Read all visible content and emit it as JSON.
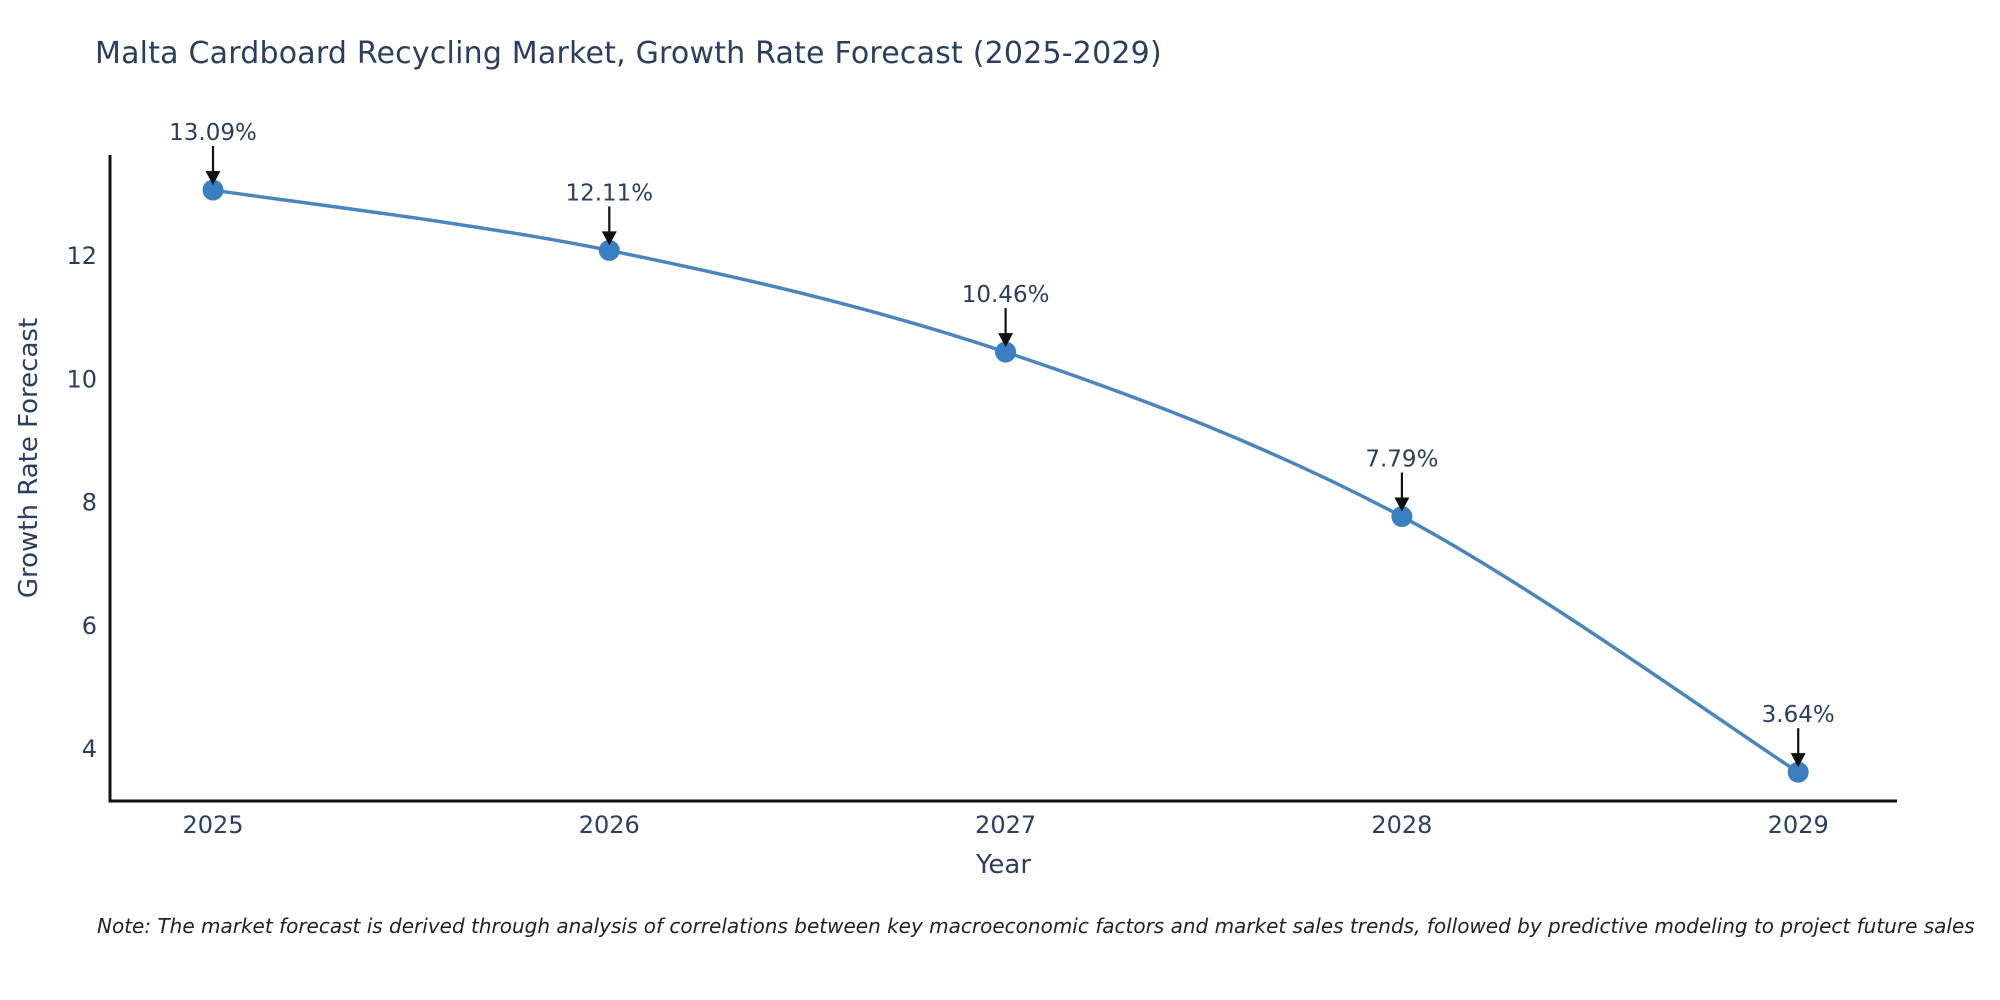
{
  "header": {
    "title": "Malta Cardboard Recycling Market, Growth Rate Forecast (2025-2029)"
  },
  "footnote": "Note: The market forecast is derived through analysis of correlations between key macroeconomic factors and market sales trends, followed by predictive modeling to project future sales",
  "chart_data": {
    "type": "line",
    "title": "Malta Cardboard Recycling Market, Growth Rate Forecast (2025-2029)",
    "xlabel": "Year",
    "ylabel": "Growth Rate Forecast",
    "categories": [
      "2025",
      "2026",
      "2027",
      "2028",
      "2029"
    ],
    "values": [
      13.09,
      12.11,
      10.46,
      7.79,
      3.64
    ],
    "point_labels": [
      "13.09%",
      "12.11%",
      "10.46%",
      "7.79%",
      "3.64%"
    ],
    "yticks": [
      4,
      6,
      8,
      10,
      12
    ],
    "ylim": [
      3.15,
      13.65
    ],
    "grid": false,
    "legend_position": "none",
    "line_shape": "spline",
    "annotation_style": "value-labels-with-down-arrows",
    "colors": {
      "line": "#4886bb",
      "marker": "#3a80c1",
      "axis": "#111111",
      "arrow": "#111111",
      "text": "#2a3f5f"
    }
  }
}
